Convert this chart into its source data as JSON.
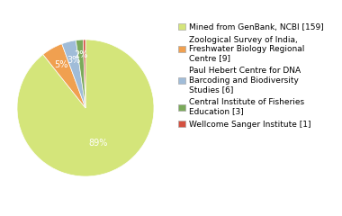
{
  "labels": [
    "Mined from GenBank, NCBI [159]",
    "Zoological Survey of India,\nFreshwater Biology Regional\nCentre [9]",
    "Paul Hebert Centre for DNA\nBarcoding and Biodiversity\nStudies [6]",
    "Central Institute of Fisheries\nEducation [3]",
    "Wellcome Sanger Institute [1]"
  ],
  "values": [
    159,
    9,
    6,
    3,
    1
  ],
  "colors": [
    "#d4e57a",
    "#f0a050",
    "#a0bcd8",
    "#7aaa5a",
    "#d45040"
  ],
  "background_color": "#ffffff",
  "pct_fontsize": 7,
  "legend_fontsize": 6.5
}
